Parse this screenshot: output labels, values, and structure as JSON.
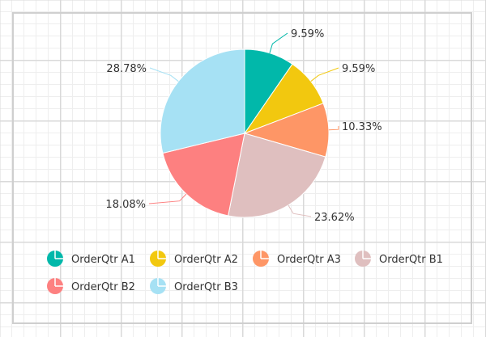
{
  "chart_data": {
    "type": "pie",
    "title": "",
    "start_angle_deg": 0,
    "direction": "clockwise",
    "legend_position": "bottom",
    "series": [
      {
        "name": "OrderQtr A1",
        "value": 9.59,
        "label": "9.59%",
        "color": "#01b8aa"
      },
      {
        "name": "OrderQtr A2",
        "value": 9.59,
        "label": "9.59%",
        "color": "#f2c80f"
      },
      {
        "name": "OrderQtr A3",
        "value": 10.33,
        "label": "10.33%",
        "color": "#fe9666"
      },
      {
        "name": "OrderQtr B1",
        "value": 23.62,
        "label": "23.62%",
        "color": "#dfbfbf"
      },
      {
        "name": "OrderQtr B2",
        "value": 18.08,
        "label": "18.08%",
        "color": "#fd8080"
      },
      {
        "name": "OrderQtr B3",
        "value": 28.78,
        "label": "28.78%",
        "color": "#a6e1f4"
      }
    ]
  }
}
